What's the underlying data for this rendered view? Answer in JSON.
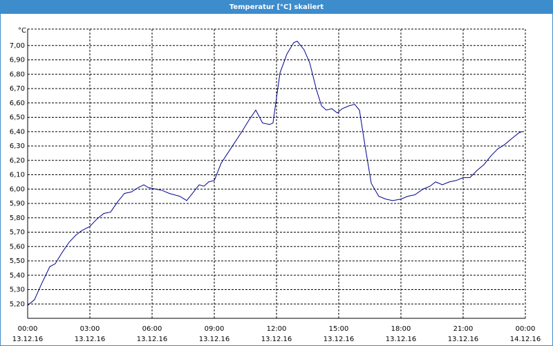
{
  "window_title": "Temperatur [°C] skaliert",
  "chart_data": {
    "type": "line",
    "ylabel": "°C",
    "color": "#00008b",
    "grid": true,
    "x": [
      0,
      0.33,
      0.67,
      1.07,
      1.33,
      1.67,
      2,
      2.33,
      2.6,
      3,
      3.33,
      3.67,
      4,
      4.33,
      4.67,
      5,
      5.33,
      5.6,
      5.83,
      6.17,
      6.5,
      6.83,
      7.33,
      7.67,
      8,
      8.27,
      8.5,
      8.73,
      9,
      9.33,
      9.83,
      10.33,
      10.67,
      11,
      11.33,
      11.67,
      11.83,
      12.17,
      12.5,
      12.83,
      13,
      13.33,
      13.6,
      13.93,
      14.17,
      14.4,
      14.67,
      14.93,
      15.17,
      15.5,
      15.77,
      16,
      16.27,
      16.57,
      16.93,
      17.27,
      17.6,
      18,
      18.33,
      18.67,
      19.07,
      19.4,
      19.67,
      20,
      20.33,
      20.67,
      21,
      21.33,
      21.67,
      22,
      22.33,
      22.67,
      23,
      23.33,
      23.67,
      23.83
    ],
    "values": [
      5.19,
      5.23,
      5.34,
      5.46,
      5.48,
      5.56,
      5.63,
      5.68,
      5.71,
      5.74,
      5.79,
      5.83,
      5.84,
      5.91,
      5.97,
      5.98,
      6.01,
      6.03,
      6.01,
      6.0,
      5.99,
      5.97,
      5.95,
      5.92,
      5.98,
      6.03,
      6.02,
      6.05,
      6.06,
      6.18,
      6.29,
      6.4,
      6.48,
      6.55,
      6.46,
      6.45,
      6.46,
      6.81,
      6.94,
      7.02,
      7.03,
      6.97,
      6.88,
      6.69,
      6.58,
      6.55,
      6.56,
      6.53,
      6.56,
      6.58,
      6.59,
      6.55,
      6.3,
      6.04,
      5.95,
      5.93,
      5.92,
      5.93,
      5.95,
      5.96,
      6.0,
      6.02,
      6.05,
      6.03,
      6.05,
      6.06,
      6.08,
      6.08,
      6.13,
      6.17,
      6.23,
      6.28,
      6.31,
      6.35,
      6.39,
      6.4
    ],
    "xlim": [
      0,
      24
    ],
    "xticks": [
      {
        "value": 0,
        "label": "00:00"
      },
      {
        "value": 3,
        "label": "03:00"
      },
      {
        "value": 6,
        "label": "06:00"
      },
      {
        "value": 9,
        "label": "09:00"
      },
      {
        "value": 12,
        "label": "12:00"
      },
      {
        "value": 15,
        "label": "15:00"
      },
      {
        "value": 18,
        "label": "18:00"
      },
      {
        "value": 21,
        "label": "21:00"
      },
      {
        "value": 24,
        "label": "00:00"
      }
    ],
    "xtick_dates": [
      "13.12.16",
      "13.12.16",
      "13.12.16",
      "13.12.16",
      "13.12.16",
      "13.12.16",
      "13.12.16",
      "13.12.16",
      "14.12.16"
    ],
    "ylim": [
      5.1,
      7.1
    ],
    "yticks": [
      {
        "value": 5.2,
        "label": "5,20"
      },
      {
        "value": 5.3,
        "label": "5,30"
      },
      {
        "value": 5.4,
        "label": "5,40"
      },
      {
        "value": 5.5,
        "label": "5,50"
      },
      {
        "value": 5.6,
        "label": "5,60"
      },
      {
        "value": 5.7,
        "label": "5,70"
      },
      {
        "value": 5.8,
        "label": "5,80"
      },
      {
        "value": 5.9,
        "label": "5,90"
      },
      {
        "value": 6.0,
        "label": "6,00"
      },
      {
        "value": 6.1,
        "label": "6,10"
      },
      {
        "value": 6.2,
        "label": "6,20"
      },
      {
        "value": 6.3,
        "label": "6,30"
      },
      {
        "value": 6.4,
        "label": "6,40"
      },
      {
        "value": 6.5,
        "label": "6,50"
      },
      {
        "value": 6.6,
        "label": "6,60"
      },
      {
        "value": 6.7,
        "label": "6,70"
      },
      {
        "value": 6.8,
        "label": "6,80"
      },
      {
        "value": 6.9,
        "label": "6,90"
      },
      {
        "value": 7.0,
        "label": "7,00"
      }
    ]
  }
}
